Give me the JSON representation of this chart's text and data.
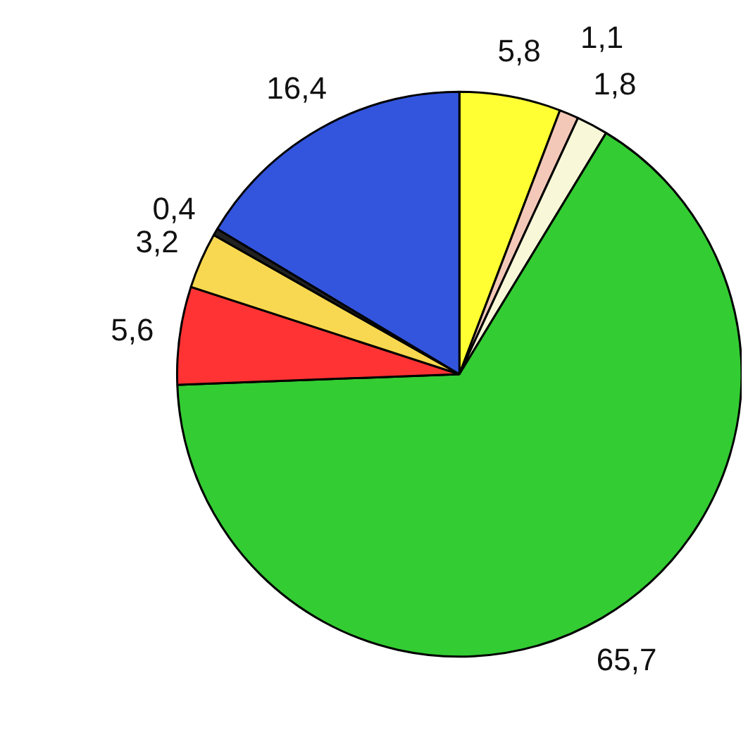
{
  "chart_data": {
    "type": "pie",
    "categories": [
      null,
      null,
      null,
      null,
      null,
      null,
      null,
      null
    ],
    "values": [
      5.8,
      1.1,
      1.8,
      65.7,
      5.6,
      3.2,
      0.4,
      16.4
    ],
    "value_labels": [
      "5,8",
      "1,1",
      "1,8",
      "65,7",
      "5,6",
      "3,2",
      "0,4",
      "16,4"
    ],
    "colors": [
      "#ffff33",
      "#f4c8b8",
      "#f8f8d8",
      "#33cc33",
      "#ff3333",
      "#f8d850",
      "#222222",
      "#3355dd"
    ]
  }
}
